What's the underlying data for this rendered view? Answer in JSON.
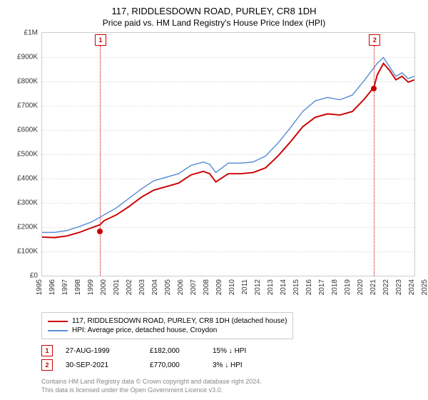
{
  "title": "117, RIDDLESDOWN ROAD, PURLEY, CR8 1DH",
  "subtitle": "Price paid vs. HM Land Registry's House Price Index (HPI)",
  "chart": {
    "type": "line",
    "background_color": "#ffffff",
    "grid_color": "#dddddd",
    "border_color": "#cccccc",
    "label_fontsize": 10,
    "ylim": [
      0,
      1000000
    ],
    "ytick_step": 100000,
    "y_tick_labels": [
      "£0",
      "£100K",
      "£200K",
      "£300K",
      "£400K",
      "£500K",
      "£600K",
      "£700K",
      "£800K",
      "£900K",
      "£1M"
    ],
    "x_years": [
      1995,
      1996,
      1997,
      1998,
      1999,
      2000,
      2001,
      2002,
      2003,
      2004,
      2005,
      2006,
      2007,
      2008,
      2009,
      2010,
      2011,
      2012,
      2013,
      2014,
      2015,
      2016,
      2017,
      2018,
      2019,
      2020,
      2021,
      2022,
      2023,
      2024,
      2025
    ],
    "series": [
      {
        "name": "property",
        "label": "117, RIDDLESDOWN ROAD, PURLEY, CR8 1DH (detached house)",
        "color": "#cc0000",
        "line_width": 2,
        "data": [
          [
            1995,
            130000
          ],
          [
            1996,
            128000
          ],
          [
            1997,
            135000
          ],
          [
            1998,
            150000
          ],
          [
            1999,
            170000
          ],
          [
            1999.65,
            182000
          ],
          [
            2000,
            200000
          ],
          [
            2001,
            225000
          ],
          [
            2002,
            260000
          ],
          [
            2003,
            300000
          ],
          [
            2004,
            330000
          ],
          [
            2005,
            345000
          ],
          [
            2006,
            360000
          ],
          [
            2007,
            395000
          ],
          [
            2008,
            410000
          ],
          [
            2008.5,
            400000
          ],
          [
            2009,
            365000
          ],
          [
            2010,
            400000
          ],
          [
            2011,
            400000
          ],
          [
            2012,
            405000
          ],
          [
            2013,
            425000
          ],
          [
            2014,
            475000
          ],
          [
            2015,
            535000
          ],
          [
            2016,
            600000
          ],
          [
            2017,
            640000
          ],
          [
            2018,
            655000
          ],
          [
            2019,
            650000
          ],
          [
            2020,
            665000
          ],
          [
            2021,
            720000
          ],
          [
            2021.75,
            770000
          ],
          [
            2022,
            820000
          ],
          [
            2022.5,
            870000
          ],
          [
            2023,
            840000
          ],
          [
            2023.5,
            800000
          ],
          [
            2024,
            815000
          ],
          [
            2024.5,
            790000
          ],
          [
            2025,
            800000
          ]
        ]
      },
      {
        "name": "hpi",
        "label": "HPI: Average price, detached house, Croydon",
        "color": "#5b8fd6",
        "line_width": 1.5,
        "data": [
          [
            1995,
            150000
          ],
          [
            1996,
            150000
          ],
          [
            1997,
            158000
          ],
          [
            1998,
            175000
          ],
          [
            1999,
            195000
          ],
          [
            2000,
            225000
          ],
          [
            2001,
            255000
          ],
          [
            2002,
            295000
          ],
          [
            2003,
            335000
          ],
          [
            2004,
            370000
          ],
          [
            2005,
            385000
          ],
          [
            2006,
            400000
          ],
          [
            2007,
            435000
          ],
          [
            2008,
            450000
          ],
          [
            2008.5,
            440000
          ],
          [
            2009,
            405000
          ],
          [
            2010,
            445000
          ],
          [
            2011,
            445000
          ],
          [
            2012,
            450000
          ],
          [
            2013,
            475000
          ],
          [
            2014,
            530000
          ],
          [
            2015,
            595000
          ],
          [
            2016,
            665000
          ],
          [
            2017,
            710000
          ],
          [
            2018,
            725000
          ],
          [
            2019,
            715000
          ],
          [
            2020,
            735000
          ],
          [
            2021,
            800000
          ],
          [
            2022,
            870000
          ],
          [
            2022.5,
            895000
          ],
          [
            2023,
            855000
          ],
          [
            2023.5,
            815000
          ],
          [
            2024,
            830000
          ],
          [
            2024.5,
            805000
          ],
          [
            2025,
            815000
          ]
        ]
      }
    ],
    "markers": [
      {
        "id": "1",
        "year": 1999.65,
        "value": 182000,
        "color": "#cc0000"
      },
      {
        "id": "2",
        "year": 2021.75,
        "value": 770000,
        "color": "#cc0000"
      }
    ]
  },
  "sales": [
    {
      "id": "1",
      "date": "27-AUG-1999",
      "price": "£182,000",
      "diff": "15% ↓ HPI",
      "color": "#cc0000"
    },
    {
      "id": "2",
      "date": "30-SEP-2021",
      "price": "£770,000",
      "diff": "3% ↓ HPI",
      "color": "#cc0000"
    }
  ],
  "attribution": {
    "line1": "Contains HM Land Registry data © Crown copyright and database right 2024.",
    "line2": "This data is licensed under the Open Government Licence v3.0."
  }
}
